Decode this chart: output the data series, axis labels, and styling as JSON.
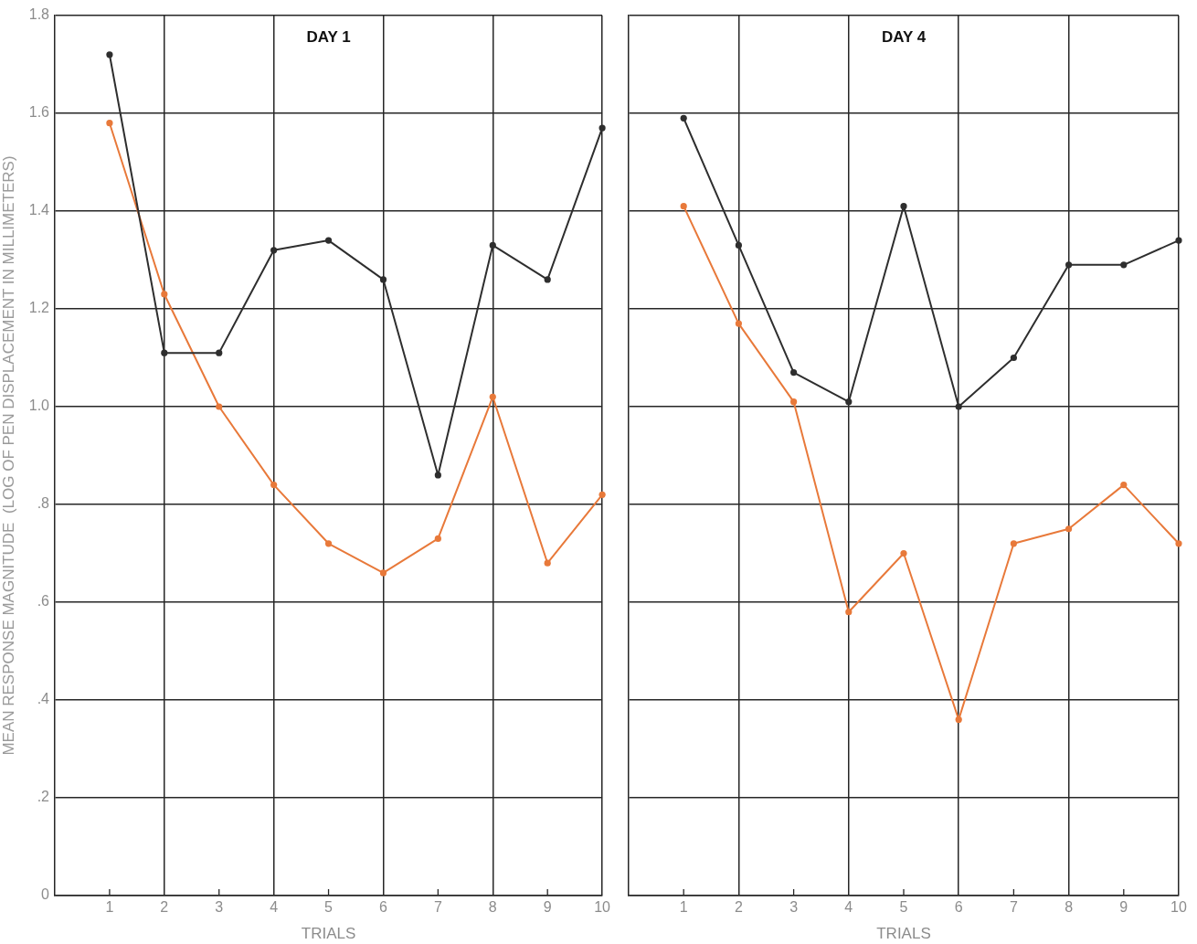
{
  "chart_data": [
    {
      "type": "line",
      "title": "DAY 1",
      "xlabel": "TRIALS",
      "ylabel": "MEAN RESPONSE MAGNITUDE  (LOG OF PEN DISPLACEMENT IN MILLIMETERS)",
      "x": [
        1,
        2,
        3,
        4,
        5,
        6,
        7,
        8,
        9,
        10
      ],
      "series": [
        {
          "color": "#2e2e2e",
          "values": [
            1.72,
            1.11,
            1.11,
            1.32,
            1.34,
            1.26,
            0.86,
            1.33,
            1.26,
            1.57
          ]
        },
        {
          "color": "#e8793a",
          "values": [
            1.58,
            1.23,
            1.0,
            0.84,
            0.72,
            0.66,
            0.73,
            1.02,
            0.68,
            0.82
          ]
        }
      ],
      "xlim": [
        0,
        10
      ],
      "xticks": [
        1,
        2,
        3,
        4,
        5,
        6,
        7,
        8,
        9,
        10
      ],
      "ylim": [
        0,
        1.8
      ],
      "yticks": [
        0,
        {
          "value": 0.2,
          "label": ".2"
        },
        {
          "value": 0.4,
          "label": ".4"
        },
        {
          "value": 0.6,
          "label": ".6"
        },
        {
          "value": 0.8,
          "label": ".8"
        },
        {
          "value": 1,
          "label": "1.0"
        },
        1.2,
        1.4,
        1.6,
        1.8
      ],
      "grid": true,
      "marker": "circle",
      "line_style": "solid"
    },
    {
      "type": "line",
      "title": "DAY 4",
      "xlabel": "TRIALS",
      "x": [
        1,
        2,
        3,
        4,
        5,
        6,
        7,
        8,
        9,
        10
      ],
      "series": [
        {
          "color": "#2e2e2e",
          "values": [
            1.59,
            1.33,
            1.07,
            1.01,
            1.41,
            1.0,
            1.1,
            1.29,
            1.29,
            1.34
          ]
        },
        {
          "color": "#e8793a",
          "values": [
            1.41,
            1.17,
            1.01,
            0.58,
            0.7,
            0.36,
            0.72,
            0.75,
            0.84,
            0.72
          ]
        }
      ],
      "xlim": [
        0,
        10
      ],
      "xticks": [
        1,
        2,
        3,
        4,
        5,
        6,
        7,
        8,
        9,
        10
      ],
      "ylim": [
        0,
        1.8
      ],
      "yticks": [
        {
          "value": 0,
          "label": null
        },
        {
          "value": 0.2,
          "label": null
        },
        {
          "value": 0.4,
          "label": null
        },
        {
          "value": 0.6,
          "label": null
        },
        {
          "value": 0.8,
          "label": null
        },
        {
          "value": 1,
          "label": null
        },
        {
          "value": 1.2,
          "label": null
        },
        {
          "value": 1.4,
          "label": null
        },
        {
          "value": 1.6,
          "label": null
        },
        {
          "value": 1.8,
          "label": null
        }
      ],
      "grid": true,
      "marker": "circle",
      "line_style": "solid",
      "tick_labels": "x"
    }
  ]
}
